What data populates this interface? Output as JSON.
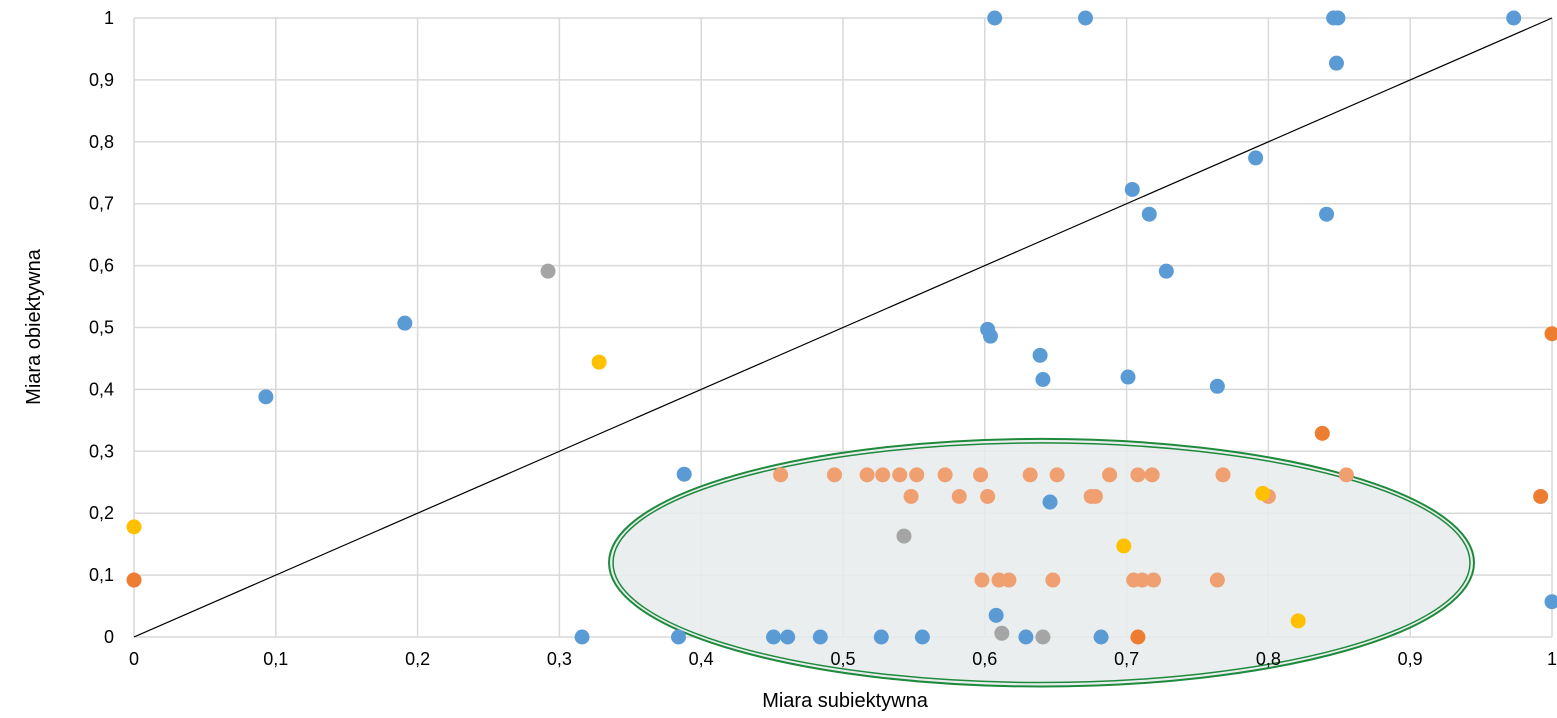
{
  "chart_data": {
    "type": "scatter",
    "title": "",
    "xlabel": "Miara subiektywna",
    "ylabel": "Miara obiektywna",
    "xlim": [
      0,
      1
    ],
    "ylim": [
      0,
      1
    ],
    "grid": true,
    "x_ticks": [
      0,
      0.1,
      0.2,
      0.3,
      0.4,
      0.5,
      0.6,
      0.7,
      0.8,
      0.9,
      1
    ],
    "y_ticks": [
      0,
      0.1,
      0.2,
      0.3,
      0.4,
      0.5,
      0.6,
      0.7,
      0.8,
      0.9,
      1
    ],
    "x_tick_labels": [
      "0",
      "0,1",
      "0,2",
      "0,3",
      "0,4",
      "0,5",
      "0,6",
      "0,7",
      "0,8",
      "0,9",
      "1"
    ],
    "y_tick_labels": [
      "0",
      "0,1",
      "0,2",
      "0,3",
      "0,4",
      "0,5",
      "0,6",
      "0,7",
      "0,8",
      "0,9",
      "1"
    ],
    "reference_line": {
      "from": [
        0,
        0
      ],
      "to": [
        1,
        1
      ],
      "color": "#000000"
    },
    "highlight_ellipse": {
      "center": [
        0.64,
        0.12
      ],
      "rx": 0.305,
      "ry": 0.2,
      "stroke": "#1e8a3c",
      "fill": "#e6ebec"
    },
    "series": [
      {
        "color": "#5b9bd5",
        "points": [
          [
            0.093,
            0.388
          ],
          [
            0.191,
            0.507
          ],
          [
            0.316,
            0.0
          ],
          [
            0.384,
            0.0
          ],
          [
            0.388,
            0.263
          ],
          [
            0.451,
            0.0
          ],
          [
            0.461,
            0.0
          ],
          [
            0.484,
            0.0
          ],
          [
            0.527,
            0.0
          ],
          [
            0.556,
            0.0
          ],
          [
            0.602,
            0.497
          ],
          [
            0.604,
            0.486
          ],
          [
            0.607,
            1.0
          ],
          [
            0.608,
            0.035
          ],
          [
            0.629,
            0.0
          ],
          [
            0.639,
            0.455
          ],
          [
            0.641,
            0.416
          ],
          [
            0.646,
            0.218
          ],
          [
            0.671,
            1.0
          ],
          [
            0.682,
            0.0
          ],
          [
            0.701,
            0.42
          ],
          [
            0.704,
            0.723
          ],
          [
            0.716,
            0.683
          ],
          [
            0.728,
            0.591
          ],
          [
            0.764,
            0.405
          ],
          [
            0.791,
            0.774
          ],
          [
            0.841,
            0.683
          ],
          [
            0.846,
            1.0
          ],
          [
            0.848,
            0.927
          ],
          [
            0.849,
            1.0
          ],
          [
            0.973,
            1.0
          ],
          [
            1.0,
            0.057
          ]
        ]
      },
      {
        "color": "#ed7d31",
        "points": [
          [
            0.0,
            0.092
          ],
          [
            0.708,
            0.0
          ],
          [
            0.838,
            0.329
          ],
          [
            0.992,
            0.227
          ],
          [
            1.0,
            0.49
          ]
        ]
      },
      {
        "color": "#f0a070",
        "points": [
          [
            0.456,
            0.262
          ],
          [
            0.494,
            0.262
          ],
          [
            0.517,
            0.262
          ],
          [
            0.528,
            0.262
          ],
          [
            0.54,
            0.262
          ],
          [
            0.548,
            0.227
          ],
          [
            0.552,
            0.262
          ],
          [
            0.572,
            0.262
          ],
          [
            0.582,
            0.227
          ],
          [
            0.597,
            0.262
          ],
          [
            0.598,
            0.092
          ],
          [
            0.602,
            0.227
          ],
          [
            0.61,
            0.092
          ],
          [
            0.617,
            0.092
          ],
          [
            0.632,
            0.262
          ],
          [
            0.648,
            0.092
          ],
          [
            0.651,
            0.262
          ],
          [
            0.675,
            0.227
          ],
          [
            0.678,
            0.227
          ],
          [
            0.688,
            0.262
          ],
          [
            0.705,
            0.092
          ],
          [
            0.708,
            0.262
          ],
          [
            0.711,
            0.092
          ],
          [
            0.718,
            0.262
          ],
          [
            0.719,
            0.092
          ],
          [
            0.764,
            0.092
          ],
          [
            0.768,
            0.262
          ],
          [
            0.8,
            0.227
          ],
          [
            0.855,
            0.262
          ]
        ]
      },
      {
        "color": "#a5a5a5",
        "points": [
          [
            0.292,
            0.591
          ],
          [
            0.543,
            0.163
          ],
          [
            0.612,
            0.006
          ],
          [
            0.641,
            0.0
          ]
        ]
      },
      {
        "color": "#ffc000",
        "points": [
          [
            0.0,
            0.178
          ],
          [
            0.328,
            0.444
          ],
          [
            0.698,
            0.147
          ],
          [
            0.796,
            0.232
          ],
          [
            0.821,
            0.026
          ]
        ]
      }
    ]
  }
}
